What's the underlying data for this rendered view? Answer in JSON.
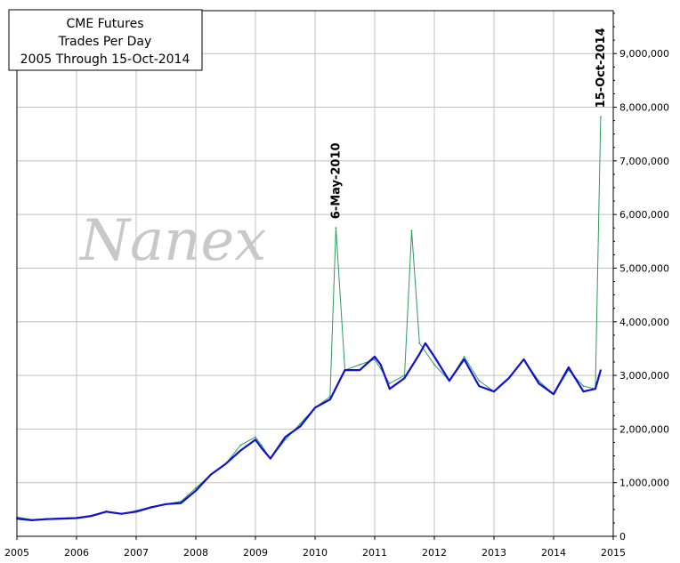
{
  "chart_data": {
    "type": "line",
    "title_lines": [
      "CME Futures",
      "Trades Per Day",
      "2005 Through 15-Oct-2014"
    ],
    "watermark": "Nanex",
    "xlim": [
      2005,
      2015
    ],
    "ylim": [
      0,
      9800000
    ],
    "x_ticks": [
      "2005",
      "2006",
      "2007",
      "2008",
      "2009",
      "2010",
      "2011",
      "2012",
      "2013",
      "2014",
      "2015"
    ],
    "y_ticks": [
      "0",
      "1,000,000",
      "2,000,000",
      "3,000,000",
      "4,000,000",
      "5,000,000",
      "6,000,000",
      "7,000,000",
      "8,000,000",
      "9,000,000"
    ],
    "y_axis_side": "right",
    "grid": true,
    "annotations": [
      {
        "text": "6-May-2010",
        "x": 2010.35,
        "y": 5750000
      },
      {
        "text": "15-Oct-2014",
        "x": 2014.79,
        "y": 7820000
      }
    ],
    "colors": {
      "daily": "#2e9b5e",
      "average": "#1010d0",
      "grid": "#c0c0c0"
    },
    "series": [
      {
        "key": "daily",
        "x": [
          2005.0,
          2005.25,
          2005.5,
          2005.75,
          2006.0,
          2006.25,
          2006.5,
          2006.75,
          2007.0,
          2007.25,
          2007.5,
          2007.75,
          2008.0,
          2008.25,
          2008.5,
          2008.75,
          2009.0,
          2009.1,
          2009.25,
          2009.5,
          2009.75,
          2010.0,
          2010.25,
          2010.35,
          2010.5,
          2010.75,
          2011.0,
          2011.25,
          2011.5,
          2011.62,
          2011.75,
          2012.0,
          2012.25,
          2012.5,
          2012.75,
          2013.0,
          2013.25,
          2013.5,
          2013.75,
          2014.0,
          2014.25,
          2014.5,
          2014.7,
          2014.79
        ],
        "y": [
          360000,
          310000,
          330000,
          340000,
          350000,
          390000,
          470000,
          420000,
          480000,
          550000,
          600000,
          650000,
          900000,
          1150000,
          1350000,
          1700000,
          1850000,
          1700000,
          1450000,
          1800000,
          2100000,
          2400000,
          2600000,
          5750000,
          3100000,
          3200000,
          3300000,
          2850000,
          3000000,
          5700000,
          3600000,
          3200000,
          2900000,
          3350000,
          2900000,
          2700000,
          2950000,
          3300000,
          2900000,
          2650000,
          3100000,
          2800000,
          2750000,
          7820000
        ]
      },
      {
        "key": "average",
        "x": [
          2005.0,
          2005.25,
          2005.5,
          2005.75,
          2006.0,
          2006.25,
          2006.5,
          2006.75,
          2007.0,
          2007.25,
          2007.5,
          2007.75,
          2008.0,
          2008.25,
          2008.5,
          2008.75,
          2009.0,
          2009.1,
          2009.25,
          2009.5,
          2009.75,
          2010.0,
          2010.25,
          2010.5,
          2010.75,
          2011.0,
          2011.1,
          2011.25,
          2011.5,
          2011.75,
          2011.85,
          2012.0,
          2012.25,
          2012.5,
          2012.75,
          2013.0,
          2013.25,
          2013.5,
          2013.75,
          2014.0,
          2014.25,
          2014.5,
          2014.7,
          2014.79
        ],
        "y": [
          330000,
          300000,
          320000,
          330000,
          340000,
          380000,
          460000,
          420000,
          460000,
          540000,
          600000,
          620000,
          850000,
          1150000,
          1350000,
          1600000,
          1800000,
          1650000,
          1450000,
          1850000,
          2050000,
          2400000,
          2550000,
          3100000,
          3100000,
          3350000,
          3200000,
          2750000,
          2950000,
          3400000,
          3600000,
          3350000,
          2900000,
          3300000,
          2800000,
          2700000,
          2950000,
          3300000,
          2850000,
          2650000,
          3150000,
          2700000,
          2750000,
          3100000
        ]
      }
    ]
  }
}
